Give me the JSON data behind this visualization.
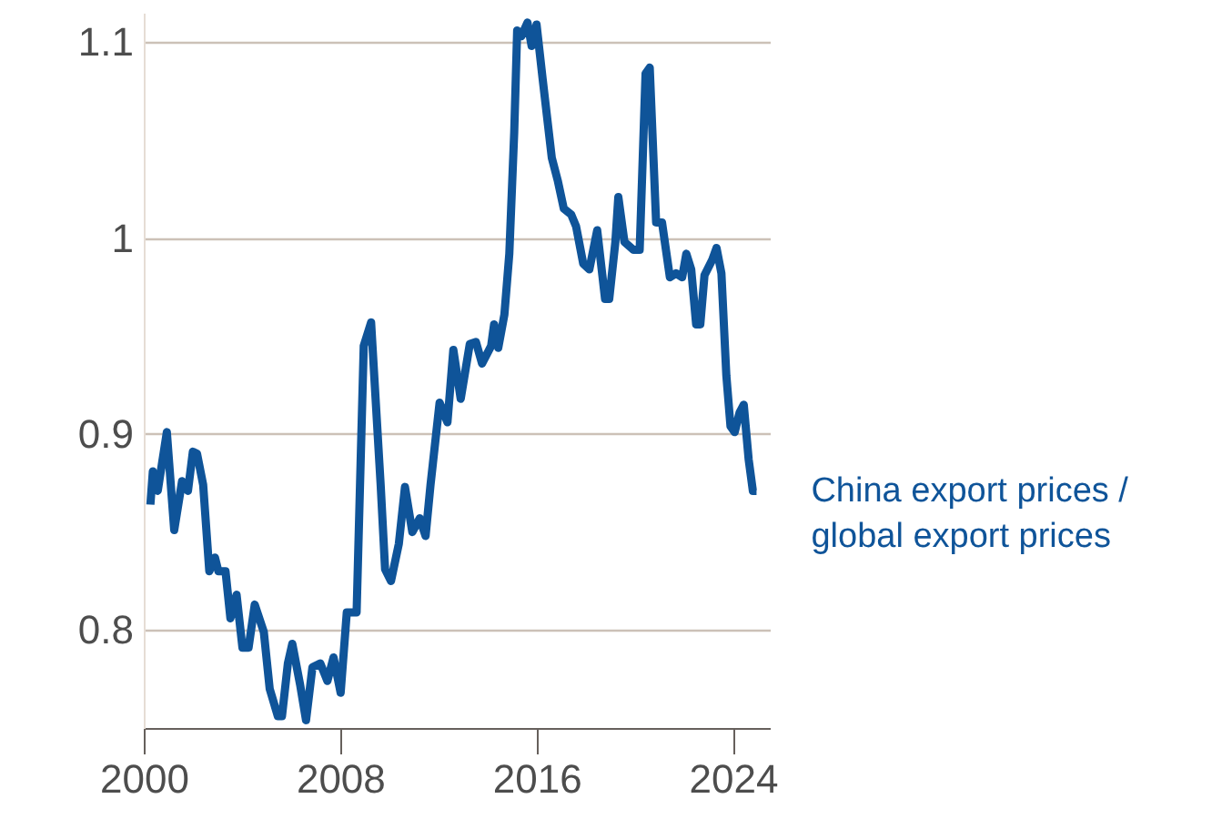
{
  "chart_data": {
    "type": "line",
    "xlim": [
      2000,
      2025.5
    ],
    "xticks": [
      2000,
      2008,
      2016,
      2024
    ],
    "ylim": [
      0.75,
      1.115
    ],
    "yticks": [
      0.8,
      0.9,
      1,
      1.1
    ],
    "grid": "y",
    "legend": false,
    "line_style": "solid",
    "series": [
      {
        "name": "China export prices / global export prices",
        "color": "#0f5499",
        "x": [
          2000.27,
          2000.37,
          2000.57,
          2000.94,
          2001.24,
          2001.56,
          2001.8,
          2002.0,
          2002.17,
          2002.42,
          2002.67,
          2002.9,
          2003.04,
          2003.33,
          2003.53,
          2003.78,
          2004.02,
          2004.27,
          2004.52,
          2004.89,
          2005.13,
          2005.46,
          2005.63,
          2005.87,
          2006.05,
          2006.37,
          2006.61,
          2006.87,
          2007.19,
          2007.48,
          2007.73,
          2008.02,
          2008.27,
          2008.67,
          2008.96,
          2009.26,
          2009.65,
          2009.83,
          2010.07,
          2010.39,
          2010.64,
          2010.94,
          2011.24,
          2011.48,
          2011.68,
          2012.05,
          2012.37,
          2012.61,
          2012.91,
          2013.28,
          2013.53,
          2013.78,
          2014.15,
          2014.27,
          2014.44,
          2014.69,
          2014.89,
          2015.09,
          2015.21,
          2015.38,
          2015.63,
          2015.8,
          2016.0,
          2016.25,
          2016.62,
          2016.87,
          2017.11,
          2017.41,
          2017.61,
          2017.9,
          2018.15,
          2018.47,
          2018.79,
          2018.96,
          2019.21,
          2019.33,
          2019.58,
          2019.95,
          2020.2,
          2020.44,
          2020.61,
          2020.87,
          2021.11,
          2021.43,
          2021.68,
          2021.93,
          2022.1,
          2022.3,
          2022.5,
          2022.67,
          2022.84,
          2023.16,
          2023.33,
          2023.53,
          2023.73,
          2023.9,
          2024.07,
          2024.27,
          2024.44,
          2024.64,
          2024.81,
          2024.96
        ],
        "values": [
          0.864,
          0.881,
          0.871,
          0.901,
          0.851,
          0.876,
          0.871,
          0.891,
          0.89,
          0.874,
          0.83,
          0.837,
          0.83,
          0.83,
          0.806,
          0.818,
          0.791,
          0.791,
          0.813,
          0.799,
          0.77,
          0.756,
          0.756,
          0.783,
          0.793,
          0.772,
          0.754,
          0.781,
          0.783,
          0.774,
          0.786,
          0.768,
          0.809,
          0.809,
          0.945,
          0.957,
          0.874,
          0.831,
          0.825,
          0.844,
          0.873,
          0.85,
          0.857,
          0.848,
          0.874,
          0.916,
          0.906,
          0.943,
          0.918,
          0.946,
          0.947,
          0.936,
          0.945,
          0.956,
          0.944,
          0.961,
          0.992,
          1.054,
          1.106,
          1.103,
          1.11,
          1.098,
          1.109,
          1.081,
          1.041,
          1.029,
          1.015,
          1.012,
          1.006,
          0.987,
          0.984,
          1.004,
          0.969,
          0.969,
          0.998,
          1.021,
          0.998,
          0.994,
          0.994,
          1.084,
          1.087,
          1.008,
          1.008,
          0.98,
          0.982,
          0.98,
          0.992,
          0.984,
          0.956,
          0.956,
          0.981,
          0.989,
          0.995,
          0.982,
          0.93,
          0.904,
          0.901,
          0.911,
          0.915,
          0.887,
          0.871,
          0.871
        ]
      }
    ]
  }
}
